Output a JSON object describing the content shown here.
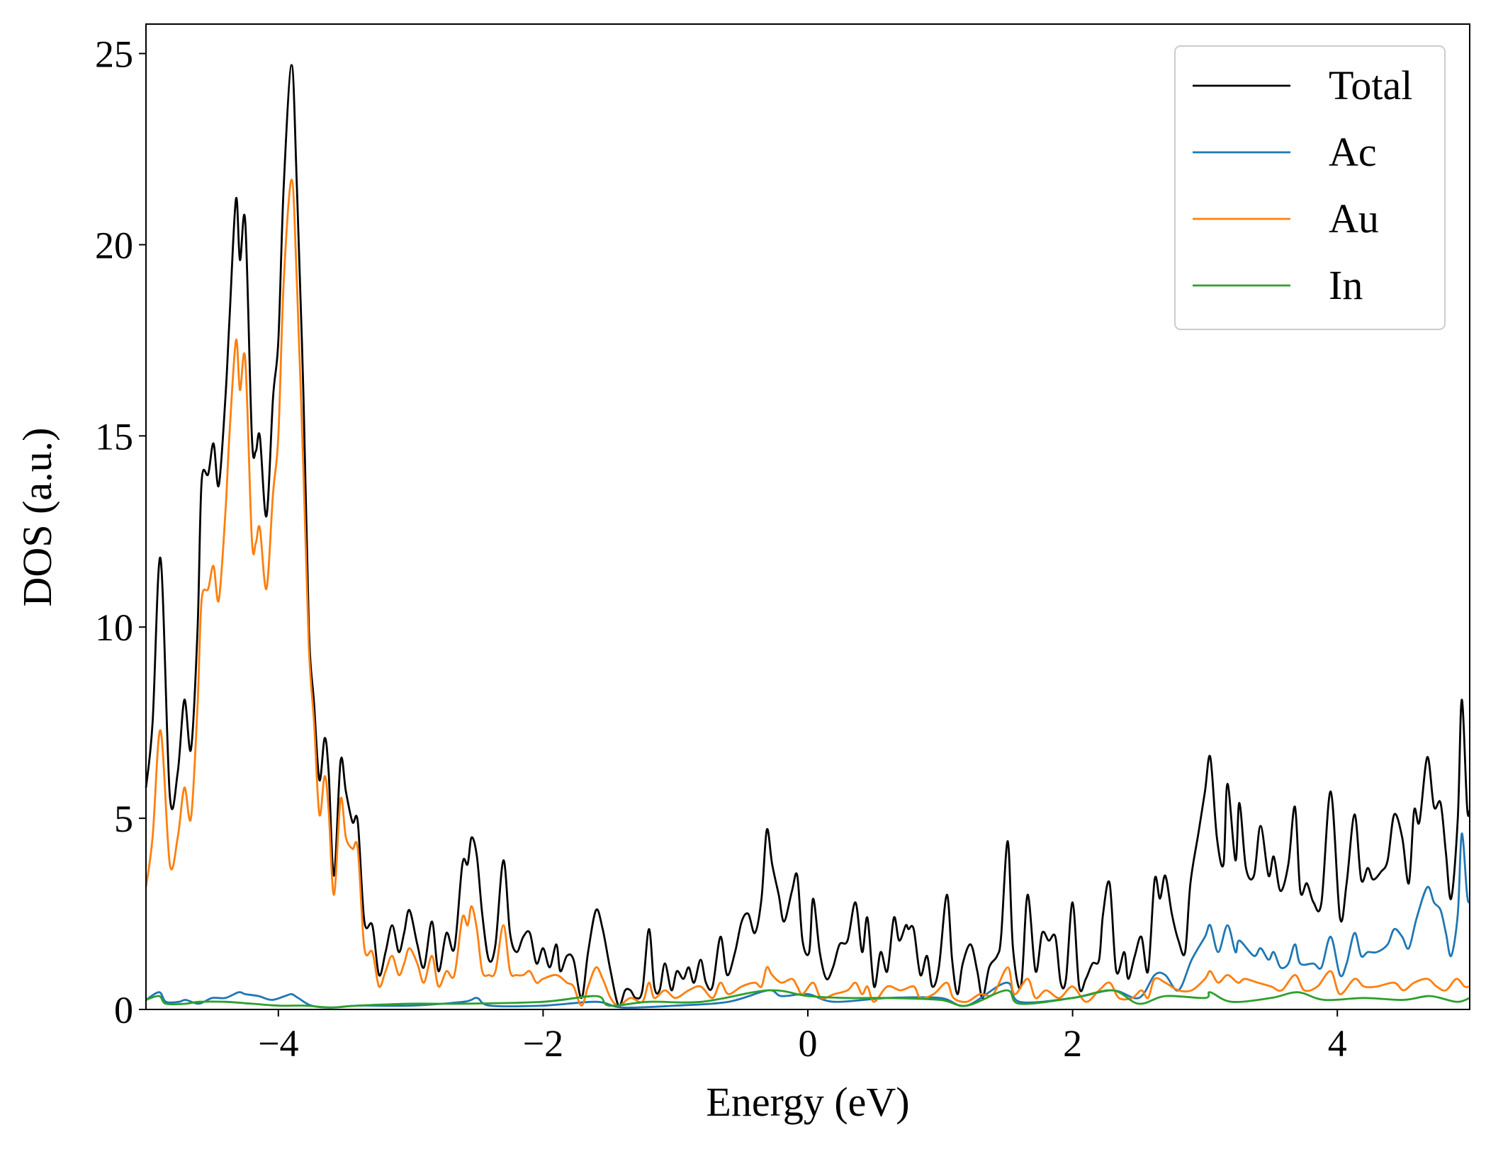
{
  "chart_data": {
    "type": "line",
    "title": "",
    "xlabel": "Energy (eV)",
    "ylabel": "DOS (a.u.)",
    "xlim": [
      -5,
      5
    ],
    "ylim": [
      0,
      25.77
    ],
    "xticks": [
      -4,
      -2,
      0,
      2,
      4
    ],
    "xtick_labels": [
      "−4",
      "−2",
      "0",
      "2",
      "4"
    ],
    "yticks": [
      0,
      5,
      10,
      15,
      20,
      25
    ],
    "ytick_labels": [
      "0",
      "5",
      "10",
      "15",
      "20",
      "25"
    ],
    "grid": false,
    "legend_position": "top-right",
    "series": [
      {
        "name": "Total",
        "color": "#000000",
        "x": [
          -5,
          -4.95,
          -4.89,
          -4.82,
          -4.76,
          -4.71,
          -4.66,
          -4.61,
          -4.58,
          -4.53,
          -4.49,
          -4.45,
          -4.4,
          -4.37,
          -4.32,
          -4.29,
          -4.25,
          -4.2,
          -4.17,
          -4.14,
          -4.09,
          -4.04,
          -4.0,
          -3.96,
          -3.9,
          -3.86,
          -3.81,
          -3.77,
          -3.73,
          -3.69,
          -3.65,
          -3.62,
          -3.58,
          -3.53,
          -3.49,
          -3.44,
          -3.4,
          -3.35,
          -3.29,
          -3.24,
          -3.19,
          -3.14,
          -3.09,
          -3.05,
          -3.01,
          -2.95,
          -2.9,
          -2.84,
          -2.79,
          -2.73,
          -2.67,
          -2.61,
          -2.57,
          -2.54,
          -2.5,
          -2.46,
          -2.41,
          -2.36,
          -2.3,
          -2.25,
          -2.2,
          -2.15,
          -2.1,
          -2.05,
          -2.0,
          -1.95,
          -1.9,
          -1.87,
          -1.82,
          -1.77,
          -1.71,
          -1.66,
          -1.6,
          -1.55,
          -1.49,
          -1.43,
          -1.38,
          -1.34,
          -1.3,
          -1.25,
          -1.2,
          -1.16,
          -1.12,
          -1.08,
          -1.03,
          -0.99,
          -0.94,
          -0.9,
          -0.86,
          -0.81,
          -0.77,
          -0.72,
          -0.66,
          -0.61,
          -0.55,
          -0.5,
          -0.45,
          -0.4,
          -0.35,
          -0.31,
          -0.27,
          -0.22,
          -0.18,
          -0.12,
          -0.08,
          -0.04,
          0.01,
          0.04,
          0.09,
          0.14,
          0.19,
          0.24,
          0.3,
          0.36,
          0.41,
          0.45,
          0.5,
          0.55,
          0.6,
          0.65,
          0.69,
          0.74,
          0.76,
          0.8,
          0.85,
          0.9,
          0.94,
          0.99,
          1.05,
          1.09,
          1.13,
          1.17,
          1.23,
          1.28,
          1.32,
          1.37,
          1.43,
          1.46,
          1.51,
          1.55,
          1.61,
          1.66,
          1.72,
          1.77,
          1.82,
          1.87,
          1.91,
          1.95,
          2.0,
          2.05,
          2.1,
          2.15,
          2.2,
          2.23,
          2.28,
          2.33,
          2.39,
          2.42,
          2.47,
          2.52,
          2.57,
          2.62,
          2.66,
          2.7,
          2.75,
          2.8,
          2.85,
          2.89,
          2.95,
          3.0,
          3.04,
          3.09,
          3.14,
          3.17,
          3.23,
          3.26,
          3.31,
          3.37,
          3.42,
          3.48,
          3.52,
          3.57,
          3.63,
          3.68,
          3.72,
          3.77,
          3.82,
          3.88,
          3.95,
          4.02,
          4.07,
          4.13,
          4.18,
          4.23,
          4.27,
          4.33,
          4.38,
          4.43,
          4.49,
          4.54,
          4.58,
          4.62,
          4.68,
          4.73,
          4.78,
          4.82,
          4.86,
          4.91,
          4.94,
          4.98,
          5.0
        ],
        "y": [
          5.8,
          7.5,
          11.8,
          5.6,
          6.2,
          8.1,
          6.8,
          10,
          13.8,
          14,
          14.8,
          13.7,
          16,
          18,
          21.2,
          19.6,
          20.6,
          15,
          14.6,
          15,
          12.9,
          16,
          17.5,
          21.5,
          24.7,
          21.5,
          16,
          10,
          8,
          6,
          7.1,
          6.2,
          3.5,
          6.5,
          5.7,
          4.9,
          4.9,
          2.3,
          2.2,
          0.9,
          1.5,
          2.2,
          1.5,
          2,
          2.6,
          1.7,
          1.1,
          2.3,
          1.0,
          2.0,
          1.6,
          3.8,
          3.8,
          4.5,
          4.0,
          2.5,
          1.3,
          1.7,
          3.9,
          2.0,
          1.5,
          1.9,
          2.0,
          1.2,
          1.6,
          1.1,
          1.7,
          1.0,
          1.4,
          1.3,
          0.3,
          1.5,
          2.6,
          2.1,
          1.0,
          0.1,
          0.5,
          0.5,
          0.3,
          0.5,
          2.1,
          0.6,
          0.5,
          1.2,
          0.5,
          1.0,
          0.8,
          1.1,
          0.7,
          1.3,
          0.7,
          0.6,
          1.9,
          0.9,
          1.5,
          2.3,
          2.5,
          2.0,
          2.9,
          4.7,
          3.8,
          3.0,
          2.3,
          3.1,
          3.5,
          1.8,
          1.5,
          2.9,
          1.5,
          0.8,
          1.1,
          1.7,
          1.8,
          2.8,
          1.5,
          2.4,
          0.6,
          1.5,
          1.0,
          2.4,
          1.8,
          2.2,
          2.1,
          2.1,
          0.9,
          1.4,
          0.6,
          1.1,
          3.0,
          1.3,
          0.4,
          1.2,
          1.7,
          1.0,
          0.3,
          1.1,
          1.4,
          1.9,
          4.4,
          1.6,
          0.6,
          3.0,
          1.0,
          2.0,
          1.8,
          1.9,
          0.7,
          0.8,
          2.8,
          0.6,
          0.8,
          1.2,
          1.3,
          2.5,
          3.3,
          1.0,
          1.5,
          0.8,
          1.4,
          1.9,
          1.0,
          3.4,
          2.9,
          3.5,
          2.5,
          1.8,
          1.5,
          3.3,
          4.6,
          5.7,
          6.6,
          4.5,
          3.8,
          5.9,
          3.9,
          5.4,
          3.7,
          3.5,
          4.8,
          3.5,
          4.0,
          3.1,
          3.8,
          5.3,
          3.1,
          3.3,
          2.8,
          2.8,
          5.7,
          2.4,
          3.3,
          5.1,
          3.4,
          3.7,
          3.4,
          3.6,
          3.9,
          5.1,
          4.5,
          3.3,
          5.2,
          4.9,
          6.6,
          5.3,
          5.4,
          4.1,
          2.9,
          5.0,
          8.1,
          5.3,
          5.2
        ]
      },
      {
        "name": "Ac",
        "color": "#1f77b4",
        "x": [
          -5,
          -4.9,
          -4.85,
          -4.75,
          -4.7,
          -4.6,
          -4.5,
          -4.4,
          -4.3,
          -4.25,
          -4.15,
          -4.05,
          -3.95,
          -3.9,
          -3.85,
          -3.75,
          -3.6,
          -3.4,
          -3.0,
          -2.6,
          -2.5,
          -2.4,
          -2.0,
          -1.6,
          -1.4,
          -1.0,
          -0.6,
          -0.3,
          -0.2,
          0,
          0.2,
          0.6,
          1.0,
          1.2,
          1.5,
          1.6,
          2.0,
          2.3,
          2.5,
          2.62,
          2.7,
          2.8,
          2.9,
          3.0,
          3.04,
          3.1,
          3.17,
          3.23,
          3.26,
          3.37,
          3.42,
          3.48,
          3.52,
          3.57,
          3.63,
          3.68,
          3.72,
          3.82,
          3.88,
          3.95,
          4.02,
          4.07,
          4.13,
          4.18,
          4.23,
          4.3,
          4.38,
          4.43,
          4.49,
          4.54,
          4.6,
          4.68,
          4.73,
          4.78,
          4.82,
          4.86,
          4.91,
          4.94,
          4.98,
          5.0
        ],
        "y": [
          0.25,
          0.45,
          0.2,
          0.2,
          0.25,
          0.15,
          0.3,
          0.3,
          0.45,
          0.4,
          0.35,
          0.25,
          0.35,
          0.4,
          0.3,
          0.1,
          0.05,
          0.1,
          0.1,
          0.2,
          0.3,
          0.1,
          0.1,
          0.2,
          0.05,
          0.1,
          0.2,
          0.5,
          0.35,
          0.4,
          0.2,
          0.3,
          0.3,
          0.1,
          0.7,
          0.2,
          0.3,
          0.5,
          0.3,
          0.9,
          0.9,
          0.5,
          1.3,
          1.9,
          2.2,
          1.5,
          2.2,
          1.5,
          1.8,
          1.4,
          1.6,
          1.3,
          1.5,
          1.1,
          1.2,
          1.7,
          1.2,
          1.2,
          1.1,
          1.9,
          0.9,
          1.2,
          2.0,
          1.4,
          1.5,
          1.5,
          1.7,
          2.1,
          1.9,
          1.6,
          2.4,
          3.2,
          2.8,
          2.6,
          2.0,
          1.4,
          2.5,
          4.6,
          3.0,
          2.8
        ]
      },
      {
        "name": "Au",
        "color": "#ff7f0e",
        "x": [
          -5,
          -4.95,
          -4.89,
          -4.82,
          -4.76,
          -4.71,
          -4.66,
          -4.61,
          -4.58,
          -4.53,
          -4.49,
          -4.45,
          -4.4,
          -4.37,
          -4.32,
          -4.29,
          -4.25,
          -4.2,
          -4.17,
          -4.14,
          -4.09,
          -4.04,
          -4.0,
          -3.96,
          -3.9,
          -3.86,
          -3.81,
          -3.77,
          -3.73,
          -3.69,
          -3.65,
          -3.62,
          -3.58,
          -3.53,
          -3.49,
          -3.44,
          -3.4,
          -3.35,
          -3.29,
          -3.24,
          -3.19,
          -3.14,
          -3.09,
          -3.05,
          -3.01,
          -2.95,
          -2.9,
          -2.84,
          -2.79,
          -2.73,
          -2.67,
          -2.61,
          -2.57,
          -2.54,
          -2.5,
          -2.46,
          -2.41,
          -2.36,
          -2.3,
          -2.25,
          -2.2,
          -2.15,
          -2.1,
          -2.05,
          -2.0,
          -1.9,
          -1.82,
          -1.77,
          -1.71,
          -1.66,
          -1.6,
          -1.55,
          -1.49,
          -1.43,
          -1.34,
          -1.25,
          -1.2,
          -1.16,
          -1.08,
          -1.0,
          -0.9,
          -0.81,
          -0.72,
          -0.66,
          -0.6,
          -0.5,
          -0.4,
          -0.35,
          -0.31,
          -0.27,
          -0.2,
          -0.12,
          -0.08,
          -0.04,
          0.04,
          0.1,
          0.2,
          0.3,
          0.36,
          0.41,
          0.45,
          0.5,
          0.6,
          0.7,
          0.8,
          0.85,
          0.95,
          1.05,
          1.1,
          1.2,
          1.3,
          1.4,
          1.51,
          1.56,
          1.66,
          1.72,
          1.8,
          1.9,
          2.0,
          2.1,
          2.2,
          2.28,
          2.35,
          2.45,
          2.52,
          2.57,
          2.62,
          2.7,
          2.8,
          2.9,
          3.0,
          3.04,
          3.1,
          3.17,
          3.25,
          3.3,
          3.4,
          3.5,
          3.58,
          3.68,
          3.75,
          3.85,
          3.95,
          4.02,
          4.13,
          4.2,
          4.3,
          4.43,
          4.5,
          4.58,
          4.68,
          4.75,
          4.82,
          4.9,
          4.96,
          5.0
        ],
        "y": [
          3.2,
          4.5,
          7.3,
          3.8,
          4.5,
          5.8,
          5.0,
          8,
          10.7,
          11,
          11.6,
          10.7,
          13,
          15,
          17.5,
          16.2,
          17,
          12.3,
          12.2,
          12.6,
          11,
          13.5,
          15,
          19,
          21.7,
          19,
          14,
          9.5,
          7.5,
          5.1,
          6.1,
          5.2,
          3.0,
          5.5,
          4.5,
          4.2,
          4.2,
          1.6,
          1.5,
          0.6,
          1.0,
          1.4,
          0.9,
          1.2,
          1.6,
          1.2,
          0.7,
          1.4,
          0.6,
          1.0,
          0.9,
          2.4,
          2.2,
          2.7,
          2.1,
          1.0,
          0.9,
          1.0,
          2.2,
          1.0,
          0.9,
          0.9,
          1.0,
          0.7,
          0.8,
          0.9,
          0.7,
          0.6,
          0.1,
          0.6,
          1.1,
          0.8,
          0.3,
          0.1,
          0.3,
          0.2,
          0.7,
          0.3,
          0.5,
          0.3,
          0.5,
          0.6,
          0.3,
          0.7,
          0.4,
          0.6,
          0.7,
          0.6,
          1.1,
          0.9,
          0.7,
          0.8,
          0.6,
          0.4,
          0.7,
          0.3,
          0.4,
          0.5,
          0.7,
          0.4,
          0.6,
          0.2,
          0.6,
          0.5,
          0.6,
          0.3,
          0.4,
          0.7,
          0.3,
          0.2,
          0.4,
          0.4,
          1.1,
          0.4,
          0.8,
          0.3,
          0.5,
          0.3,
          0.6,
          0.2,
          0.5,
          0.7,
          0.3,
          0.3,
          0.5,
          0.3,
          0.8,
          0.7,
          0.5,
          0.5,
          0.8,
          1.0,
          0.7,
          0.9,
          0.7,
          0.8,
          0.7,
          0.6,
          0.5,
          0.9,
          0.5,
          0.6,
          1.0,
          0.4,
          0.8,
          0.6,
          0.6,
          0.7,
          0.5,
          0.7,
          0.8,
          0.6,
          0.5,
          0.8,
          0.6,
          0.6
        ]
      },
      {
        "name": "In",
        "color": "#2ca02c",
        "x": [
          -5,
          -4.9,
          -4.85,
          -4.7,
          -4.6,
          -4.4,
          -4.2,
          -4.0,
          -3.8,
          -3.6,
          -3.4,
          -3.0,
          -2.6,
          -2.0,
          -1.6,
          -1.5,
          -1.2,
          -0.8,
          -0.3,
          0,
          0.3,
          0.6,
          1.0,
          1.2,
          1.5,
          1.6,
          2.0,
          2.3,
          2.5,
          2.7,
          3.0,
          3.04,
          3.2,
          3.5,
          3.7,
          3.9,
          4.2,
          4.5,
          4.7,
          4.9,
          5.0
        ],
        "y": [
          0.25,
          0.35,
          0.15,
          0.15,
          0.2,
          0.2,
          0.15,
          0.1,
          0.1,
          0.05,
          0.1,
          0.15,
          0.15,
          0.2,
          0.35,
          0.1,
          0.2,
          0.2,
          0.5,
          0.35,
          0.3,
          0.3,
          0.25,
          0.1,
          0.5,
          0.15,
          0.3,
          0.5,
          0.15,
          0.35,
          0.3,
          0.45,
          0.2,
          0.3,
          0.45,
          0.25,
          0.3,
          0.25,
          0.35,
          0.2,
          0.3
        ]
      }
    ]
  }
}
